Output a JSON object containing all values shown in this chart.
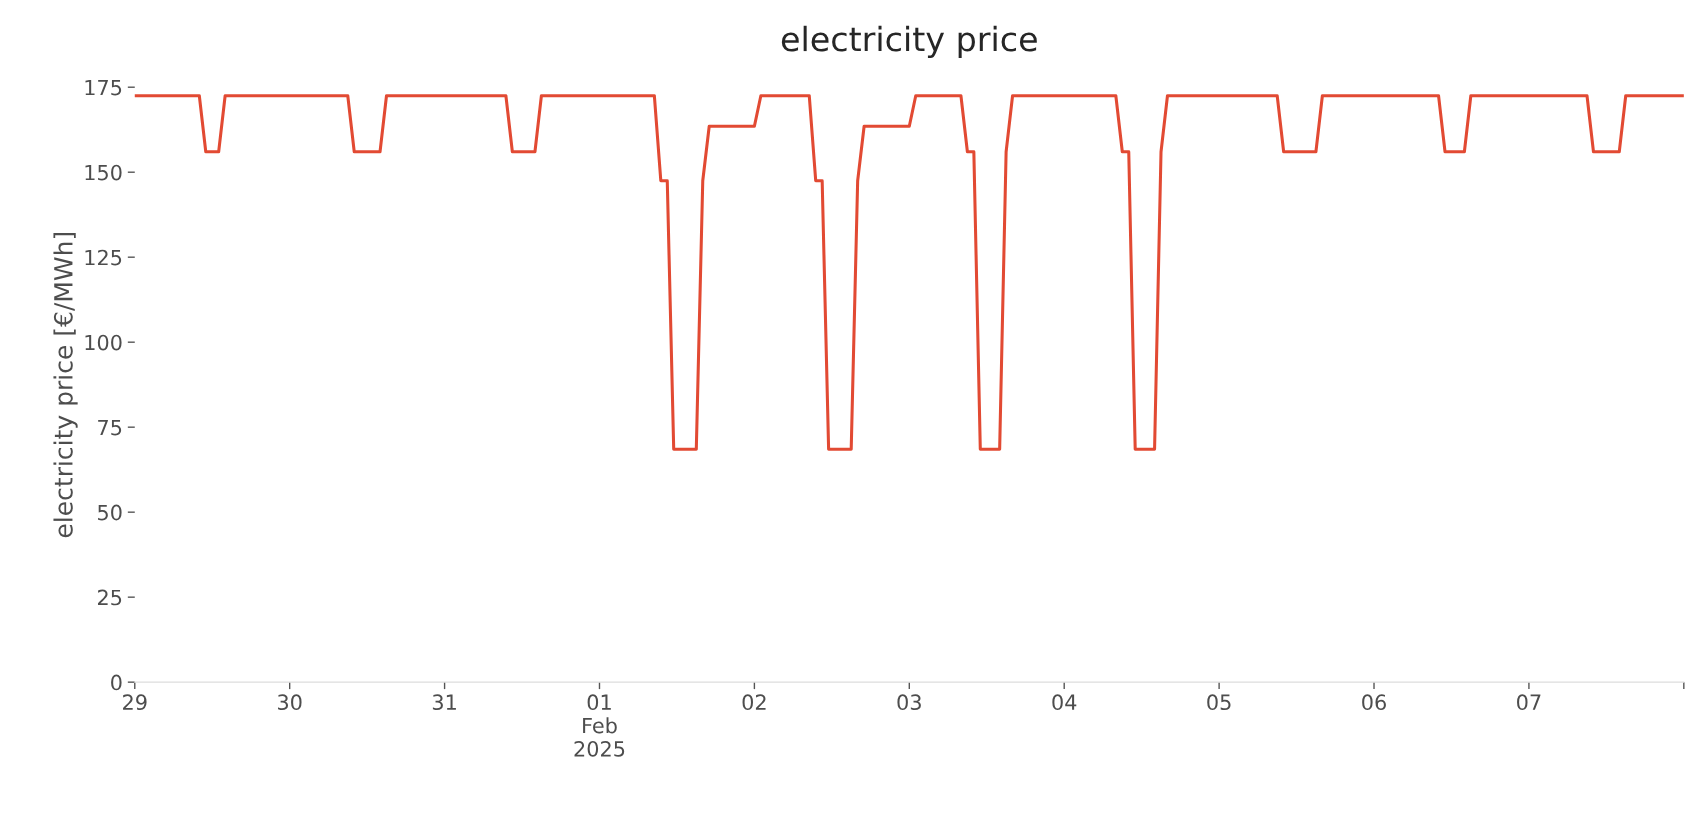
{
  "chart_data": {
    "type": "line",
    "title": "electricity price",
    "ylabel": "electricity price [€/MWh]",
    "x": [
      "2025-01-29T00:00",
      "2025-01-29T10:00",
      "2025-01-29T11:00",
      "2025-01-29T13:00",
      "2025-01-29T14:00",
      "2025-01-30T09:00",
      "2025-01-30T10:00",
      "2025-01-30T14:00",
      "2025-01-30T15:00",
      "2025-01-31T09:30",
      "2025-01-31T10:30",
      "2025-01-31T14:00",
      "2025-01-31T15:00",
      "2025-02-01T08:30",
      "2025-02-01T09:30",
      "2025-02-01T10:30",
      "2025-02-01T11:30",
      "2025-02-01T15:00",
      "2025-02-01T16:00",
      "2025-02-01T17:00",
      "2025-02-02T00:00",
      "2025-02-02T01:00",
      "2025-02-02T08:30",
      "2025-02-02T09:30",
      "2025-02-02T10:30",
      "2025-02-02T11:30",
      "2025-02-02T15:00",
      "2025-02-02T16:00",
      "2025-02-02T17:00",
      "2025-02-03T00:00",
      "2025-02-03T01:00",
      "2025-02-03T08:00",
      "2025-02-03T09:00",
      "2025-02-03T10:00",
      "2025-02-03T11:00",
      "2025-02-03T14:00",
      "2025-02-03T15:00",
      "2025-02-03T16:00",
      "2025-02-04T08:00",
      "2025-02-04T09:00",
      "2025-02-04T10:00",
      "2025-02-04T11:00",
      "2025-02-04T14:00",
      "2025-02-04T15:00",
      "2025-02-04T16:00",
      "2025-02-05T09:00",
      "2025-02-05T10:00",
      "2025-02-05T15:00",
      "2025-02-05T16:00",
      "2025-02-06T10:00",
      "2025-02-06T11:00",
      "2025-02-06T14:00",
      "2025-02-06T15:00",
      "2025-02-07T09:00",
      "2025-02-07T10:00",
      "2025-02-07T14:00",
      "2025-02-07T15:00",
      "2025-02-08T00:00"
    ],
    "series": [
      {
        "color": "#e24a33",
        "values": [
          172.5,
          172.5,
          156,
          156,
          172.5,
          172.5,
          156,
          156,
          172.5,
          172.5,
          156,
          156,
          172.5,
          172.5,
          147.5,
          147.5,
          68.5,
          68.5,
          147.5,
          163.5,
          163.5,
          172.5,
          172.5,
          147.5,
          147.5,
          68.5,
          68.5,
          147.5,
          163.5,
          163.5,
          172.5,
          172.5,
          156,
          156,
          68.5,
          68.5,
          156,
          172.5,
          172.5,
          156,
          156,
          68.5,
          68.5,
          156,
          172.5,
          172.5,
          156,
          156,
          172.5,
          172.5,
          156,
          156,
          172.5,
          172.5,
          156,
          156,
          172.5,
          172.5
        ]
      }
    ],
    "xticks": [
      {
        "value": "2025-01-29",
        "label": "29"
      },
      {
        "value": "2025-01-30",
        "label": "30"
      },
      {
        "value": "2025-01-31",
        "label": "31"
      },
      {
        "value": "2025-02-01",
        "label": "01\nFeb\n2025"
      },
      {
        "value": "2025-02-02",
        "label": "02"
      },
      {
        "value": "2025-02-03",
        "label": "03"
      },
      {
        "value": "2025-02-04",
        "label": "04"
      },
      {
        "value": "2025-02-05",
        "label": "05"
      },
      {
        "value": "2025-02-06",
        "label": "06"
      },
      {
        "value": "2025-02-07",
        "label": "07"
      },
      {
        "value": "2025-02-08",
        "label": null
      }
    ],
    "xlim": [
      "2025-01-29",
      "2025-02-08"
    ],
    "ylim": [
      0,
      175
    ],
    "yticks": [
      0,
      25,
      50,
      75,
      100,
      125,
      150,
      175
    ]
  }
}
